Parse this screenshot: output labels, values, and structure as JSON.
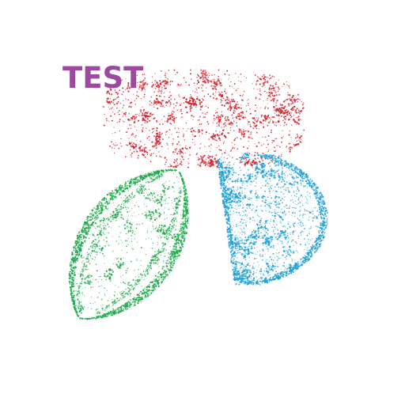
{
  "label": {
    "text": "TEST",
    "color": "#9b4a9e"
  },
  "blobs": [
    {
      "name": "red-dot-cluster",
      "color": "#d2232e",
      "shape": "rounded-rectangle"
    },
    {
      "name": "green-dot-cluster",
      "color": "#1fa84a",
      "shape": "leaf"
    },
    {
      "name": "blue-dot-cluster",
      "color": "#1e9fd8",
      "shape": "half-disc"
    }
  ],
  "background": "#ffffff"
}
